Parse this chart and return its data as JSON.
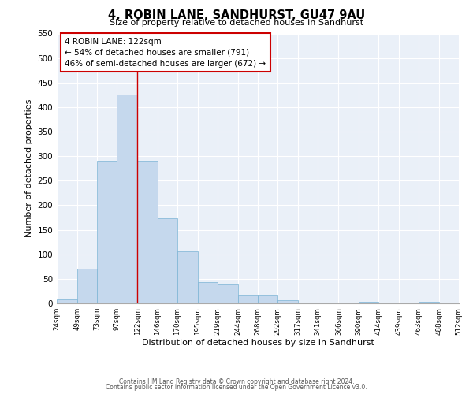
{
  "title": "4, ROBIN LANE, SANDHURST, GU47 9AU",
  "subtitle": "Size of property relative to detached houses in Sandhurst",
  "xlabel": "Distribution of detached houses by size in Sandhurst",
  "ylabel": "Number of detached properties",
  "bar_color": "#c5d8ed",
  "bar_edge_color": "#7ab3d4",
  "background_color": "#eaf0f8",
  "grid_color": "white",
  "annotation_line_color": "#cc0000",
  "annotation_box_color": "#cc0000",
  "annotation_line1": "4 ROBIN LANE: 122sqm",
  "annotation_line2": "← 54% of detached houses are smaller (791)",
  "annotation_line3": "46% of semi-detached houses are larger (672) →",
  "property_value": 122,
  "ylim": [
    0,
    550
  ],
  "yticks": [
    0,
    50,
    100,
    150,
    200,
    250,
    300,
    350,
    400,
    450,
    500,
    550
  ],
  "bin_edges": [
    24,
    49,
    73,
    97,
    122,
    146,
    170,
    195,
    219,
    244,
    268,
    292,
    317,
    341,
    366,
    390,
    414,
    439,
    463,
    488,
    512
  ],
  "bar_heights": [
    8,
    70,
    291,
    425,
    290,
    174,
    106,
    44,
    38,
    17,
    18,
    6,
    1,
    0,
    0,
    3,
    0,
    0,
    4,
    0
  ],
  "footer_line1": "Contains HM Land Registry data © Crown copyright and database right 2024.",
  "footer_line2": "Contains public sector information licensed under the Open Government Licence v3.0."
}
